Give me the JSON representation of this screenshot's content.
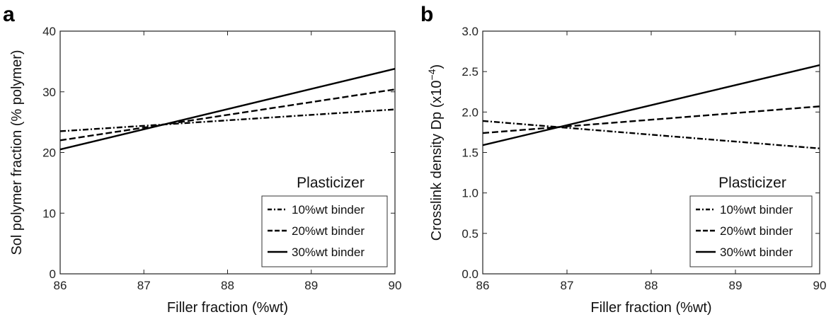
{
  "chart_data": [
    {
      "type": "line",
      "panel_label": "a",
      "xlabel": "Filler fraction (%wt)",
      "ylabel": "Sol polymer fraction (% polymer)",
      "xlim": [
        86,
        90
      ],
      "ylim": [
        0,
        40
      ],
      "xticks": [
        86,
        87,
        88,
        89,
        90
      ],
      "yticks": [
        0,
        10,
        20,
        30,
        40
      ],
      "ytick_labels": [
        "0",
        "10",
        "20",
        "30",
        "40"
      ],
      "grid": false,
      "legend_title": "Plasticizer",
      "legend_position": "bottom-right",
      "series": [
        {
          "name": "10%wt binder",
          "style": "dash-dot",
          "x": [
            86,
            90
          ],
          "y": [
            23.5,
            27.1
          ]
        },
        {
          "name": "20%wt binder",
          "style": "dashed",
          "x": [
            86,
            90
          ],
          "y": [
            22.0,
            30.4
          ]
        },
        {
          "name": "30%wt binder",
          "style": "solid",
          "x": [
            86,
            90
          ],
          "y": [
            20.5,
            33.8
          ]
        }
      ]
    },
    {
      "type": "line",
      "panel_label": "b",
      "xlabel": "Filler fraction (%wt)",
      "ylabel": "Crosslink density Dp (x10",
      "ylabel_exponent": "−4",
      "ylabel_suffix": ")",
      "xlim": [
        86,
        90
      ],
      "ylim": [
        0,
        3
      ],
      "xticks": [
        86,
        87,
        88,
        89,
        90
      ],
      "yticks": [
        0,
        0.5,
        1.0,
        1.5,
        2.0,
        2.5,
        3.0
      ],
      "ytick_labels": [
        "0.0",
        "0.5",
        "1.0",
        "1.5",
        "2.0",
        "2.5",
        "3.0"
      ],
      "grid": false,
      "legend_title": "Plasticizer",
      "legend_position": "bottom-right",
      "series": [
        {
          "name": "10%wt binder",
          "style": "dash-dot",
          "x": [
            86,
            90
          ],
          "y": [
            1.89,
            1.55
          ]
        },
        {
          "name": "20%wt binder",
          "style": "dashed",
          "x": [
            86,
            90
          ],
          "y": [
            1.74,
            2.07
          ]
        },
        {
          "name": "30%wt binder",
          "style": "solid",
          "x": [
            86,
            90
          ],
          "y": [
            1.59,
            2.58
          ]
        }
      ]
    }
  ]
}
